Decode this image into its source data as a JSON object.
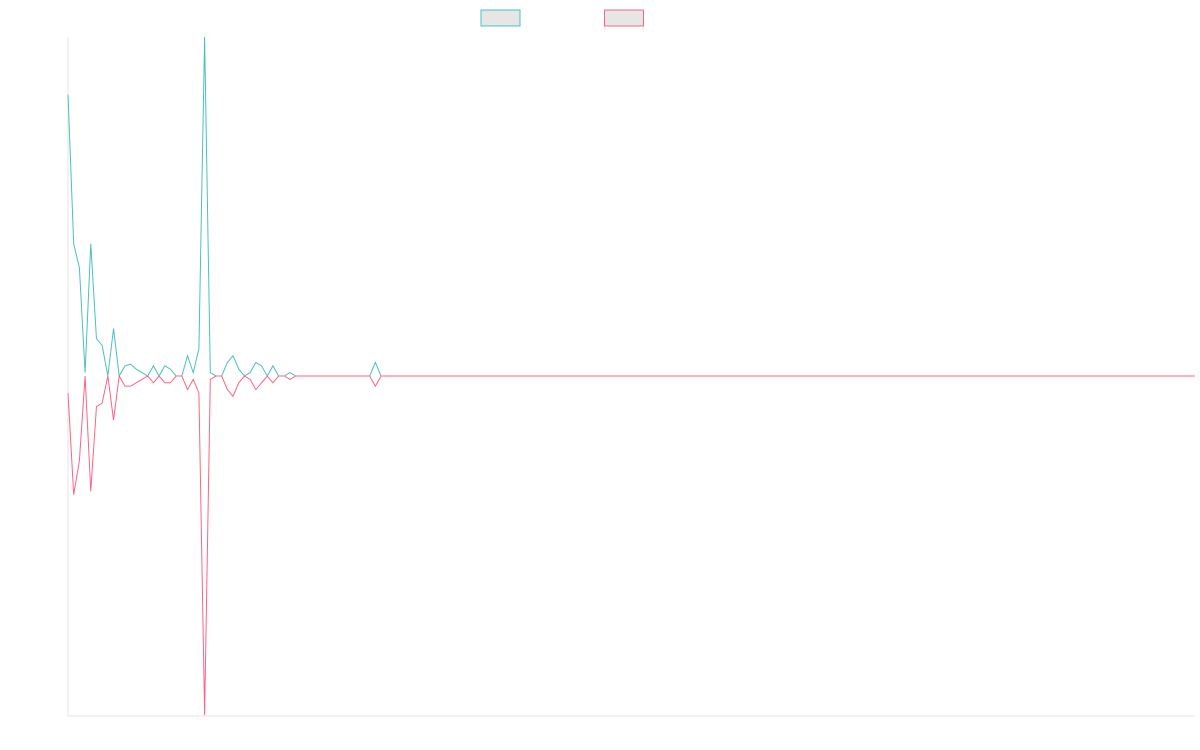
{
  "chart_data": {
    "type": "line",
    "ylim": [
      -1,
      1
    ],
    "series": [
      {
        "color": "#4bc0c0",
        "values": [
          0.83,
          0.39,
          0.32,
          0.01,
          0.39,
          0.11,
          0.09,
          0,
          0.14,
          0,
          0.03,
          0.035,
          0.02,
          0.01,
          0,
          0.03,
          0,
          0.03,
          0.02,
          0,
          0,
          0.06,
          0.01,
          0.08,
          1,
          0.01,
          0,
          0,
          0.04,
          0.06,
          0.02,
          0,
          0.01,
          0.04,
          0.03,
          0,
          0.03,
          0,
          0,
          0.01,
          0,
          0,
          0,
          0,
          0,
          0,
          0,
          0,
          0,
          0,
          0,
          0,
          0,
          0,
          0.04,
          0,
          0,
          0,
          0,
          0,
          0,
          0,
          0,
          0,
          0,
          0,
          0,
          0,
          0,
          0,
          0,
          0,
          0,
          0,
          0,
          0,
          0,
          0,
          0,
          0,
          0,
          0,
          0,
          0,
          0,
          0,
          0,
          0,
          0,
          0,
          0,
          0,
          0,
          0,
          0,
          0,
          0,
          0,
          0,
          0,
          0,
          0,
          0,
          0,
          0,
          0,
          0,
          0,
          0,
          0,
          0,
          0,
          0,
          0,
          0,
          0,
          0,
          0,
          0,
          0,
          0,
          0,
          0,
          0,
          0,
          0,
          0,
          0,
          0,
          0,
          0,
          0,
          0,
          0,
          0,
          0,
          0,
          0,
          0,
          0,
          0,
          0,
          0,
          0,
          0,
          0,
          0,
          0,
          0,
          0,
          0,
          0,
          0,
          0,
          0,
          0,
          0,
          0,
          0,
          0,
          0,
          0,
          0,
          0,
          0,
          0,
          0,
          0,
          0,
          0,
          0,
          0,
          0,
          0,
          0,
          0,
          0,
          0,
          0,
          0,
          0,
          0,
          0,
          0,
          0,
          0,
          0,
          0,
          0,
          0,
          0,
          0,
          0,
          0,
          0,
          0,
          0,
          0,
          0
        ]
      },
      {
        "color": "#ff6384",
        "values": [
          -0.05,
          -0.35,
          -0.25,
          0,
          -0.34,
          -0.09,
          -0.08,
          0,
          -0.13,
          0,
          -0.03,
          -0.03,
          -0.02,
          -0.01,
          0,
          -0.02,
          0,
          -0.02,
          -0.02,
          0,
          0,
          -0.04,
          -0.01,
          -0.05,
          -1,
          -0.01,
          0,
          0,
          -0.04,
          -0.06,
          -0.02,
          0,
          -0.01,
          -0.04,
          -0.02,
          0,
          -0.02,
          0,
          0,
          -0.01,
          0,
          0,
          0,
          0,
          0,
          0,
          0,
          0,
          0,
          0,
          0,
          0,
          0,
          0,
          -0.03,
          0,
          0,
          0,
          0,
          0,
          0,
          0,
          0,
          0,
          0,
          0,
          0,
          0,
          0,
          0,
          0,
          0,
          0,
          0,
          0,
          0,
          0,
          0,
          0,
          0,
          0,
          0,
          0,
          0,
          0,
          0,
          0,
          0,
          0,
          0,
          0,
          0,
          0,
          0,
          0,
          0,
          0,
          0,
          0,
          0,
          0,
          0,
          0,
          0,
          0,
          0,
          0,
          0,
          0,
          0,
          0,
          0,
          0,
          0,
          0,
          0,
          0,
          0,
          0,
          0,
          0,
          0,
          0,
          0,
          0,
          0,
          0,
          0,
          0,
          0,
          0,
          0,
          0,
          0,
          0,
          0,
          0,
          0,
          0,
          0,
          0,
          0,
          0,
          0,
          0,
          0,
          0,
          0,
          0,
          0,
          0,
          0,
          0,
          0,
          0,
          0,
          0,
          0,
          0,
          0,
          0,
          0,
          0,
          0,
          0,
          0,
          0,
          0,
          0,
          0,
          0,
          0,
          0,
          0,
          0,
          0,
          0,
          0,
          0,
          0,
          0,
          0,
          0,
          0,
          0,
          0,
          0,
          0,
          0,
          0,
          0,
          0,
          0,
          0,
          0,
          0,
          0,
          0,
          0
        ]
      }
    ]
  }
}
